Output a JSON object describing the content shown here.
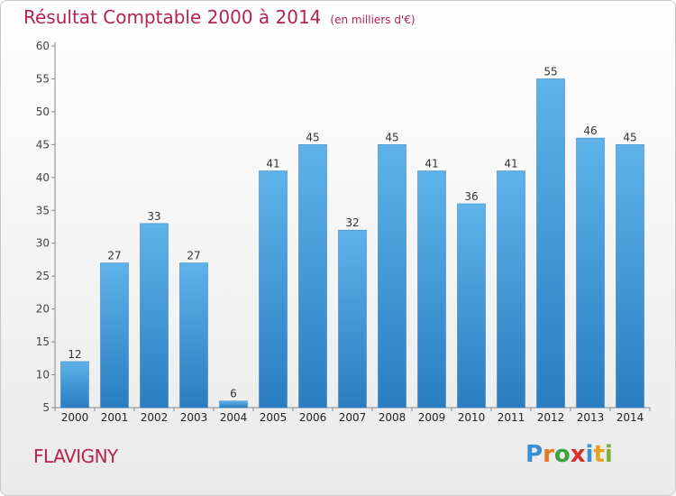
{
  "header": {
    "title": "Résultat Comptable 2000 à 2014",
    "unit": "(en milliers d'€)"
  },
  "location": "FLAVIGNY",
  "brand": {
    "letters": [
      {
        "char": "P",
        "color": "#3c8fd0"
      },
      {
        "char": "r",
        "color": "#e37b23"
      },
      {
        "char": "o",
        "color": "#3aa23c"
      },
      {
        "char": "x",
        "color": "#d7302b"
      },
      {
        "char": "i",
        "color": "#3c8fd0"
      },
      {
        "char": "t",
        "color": "#e6a21f"
      },
      {
        "char": "i",
        "color": "#7bb33a"
      }
    ]
  },
  "colors": {
    "bar_top": "#5fb2ea",
    "bar_bottom": "#2a7dc0",
    "accent": "#b5234f"
  },
  "chart_data": {
    "type": "bar",
    "title": "Résultat Comptable 2000 à 2014",
    "subtitle": "(en milliers d'€)",
    "xlabel": "",
    "ylabel": "",
    "categories": [
      "2000",
      "2001",
      "2002",
      "2003",
      "2004",
      "2005",
      "2006",
      "2007",
      "2008",
      "2009",
      "2010",
      "2011",
      "2012",
      "2013",
      "2014"
    ],
    "values": [
      12,
      27,
      33,
      27,
      6,
      41,
      45,
      32,
      45,
      41,
      36,
      41,
      55,
      46,
      45
    ],
    "ylim": [
      5,
      60
    ],
    "yticks": [
      5,
      10,
      15,
      20,
      25,
      30,
      35,
      40,
      45,
      50,
      55,
      60
    ],
    "grid": false,
    "data_labels": true
  }
}
